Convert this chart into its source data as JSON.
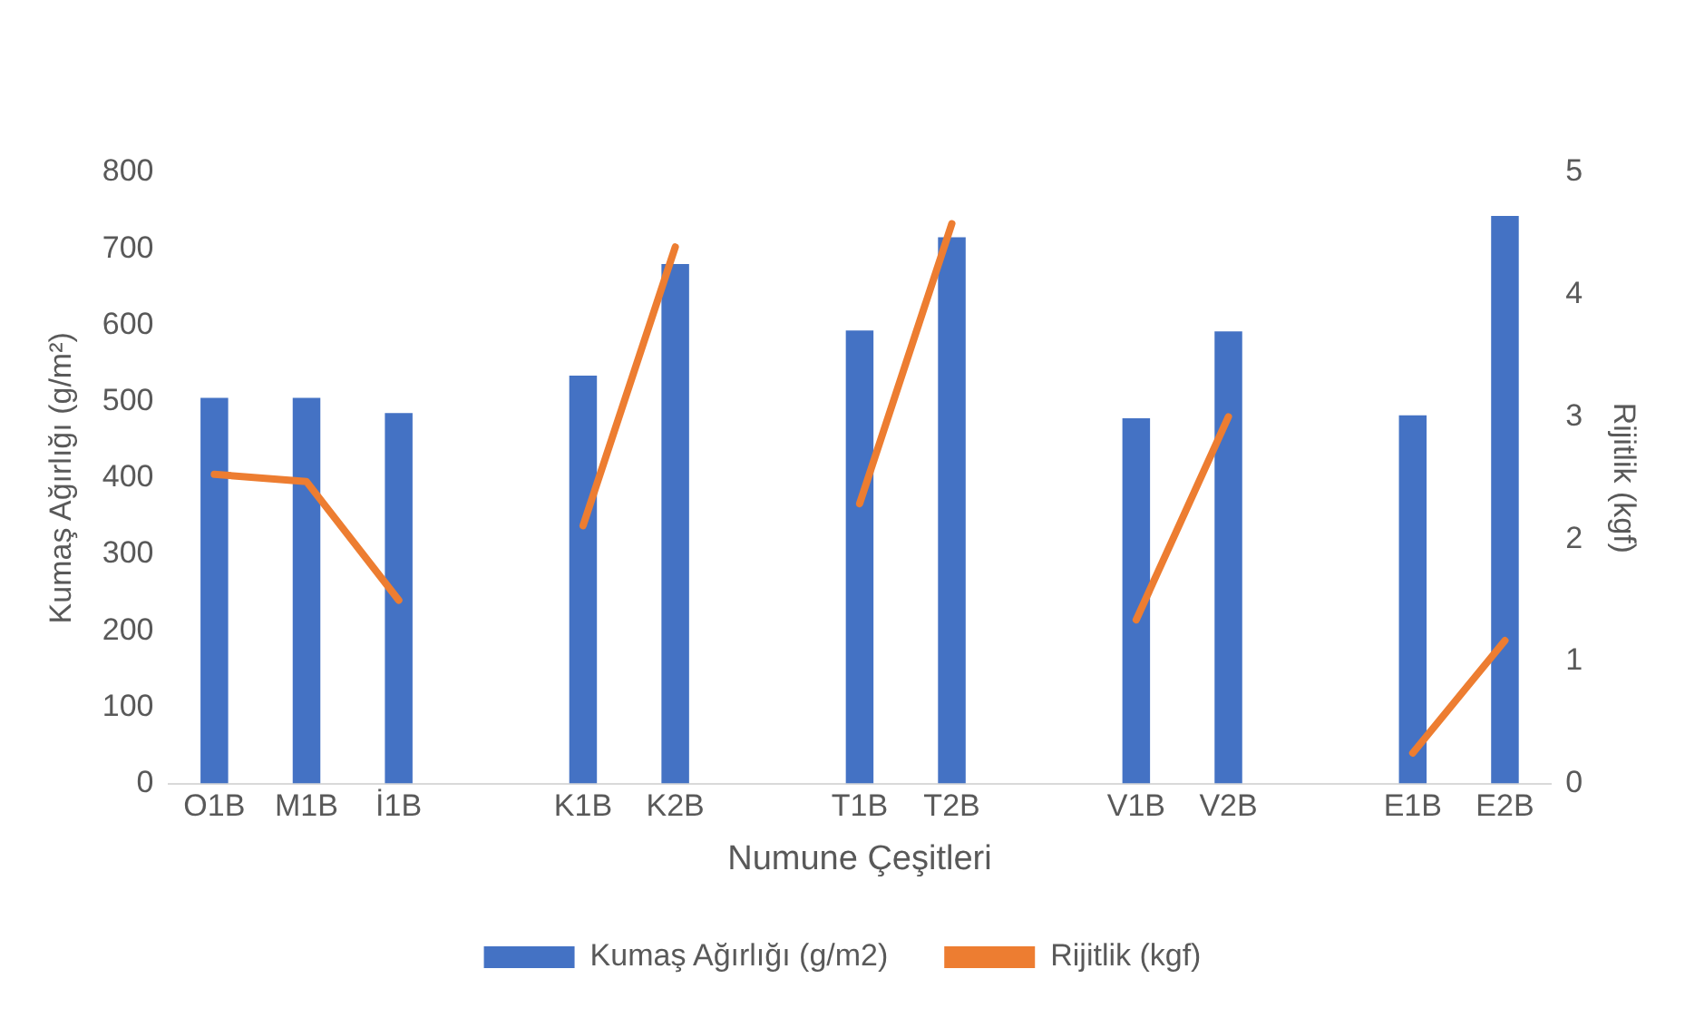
{
  "chart_data": {
    "type": "bar",
    "categories": [
      "O1B",
      "M1B",
      "İ1B",
      null,
      "K1B",
      "K2B",
      null,
      "T1B",
      "T2B",
      null,
      "V1B",
      "V2B",
      null,
      "E1B",
      "E2B"
    ],
    "series": [
      {
        "name": "Kumaş Ağırlığı (g/m2)",
        "color": "#4472c4",
        "values": [
          505,
          505,
          485,
          null,
          534,
          680,
          null,
          593,
          715,
          null,
          478,
          592,
          null,
          482,
          743
        ]
      },
      {
        "name": "Rijitlik (kgf)",
        "type": "line",
        "axis": "y2",
        "color": "#ed7d31",
        "values": [
          2.53,
          2.47,
          1.5,
          null,
          2.11,
          4.39,
          null,
          2.29,
          4.58,
          null,
          1.34,
          3.0,
          null,
          0.25,
          1.17
        ]
      }
    ],
    "xlabel": "Numune Çeşitleri",
    "ylabel": "Kumaş Ağırlığı (g/m²)",
    "y2label": "Rijitlik (kgf)",
    "ylim": [
      0,
      800
    ],
    "yticks": [
      0,
      100,
      200,
      300,
      400,
      500,
      600,
      700,
      800
    ],
    "y2lim": [
      0,
      5
    ],
    "y2ticks": [
      0,
      1,
      2,
      3,
      4,
      5
    ],
    "grid": false,
    "legend": "bottom",
    "marker": "none",
    "line_style": "solid"
  }
}
